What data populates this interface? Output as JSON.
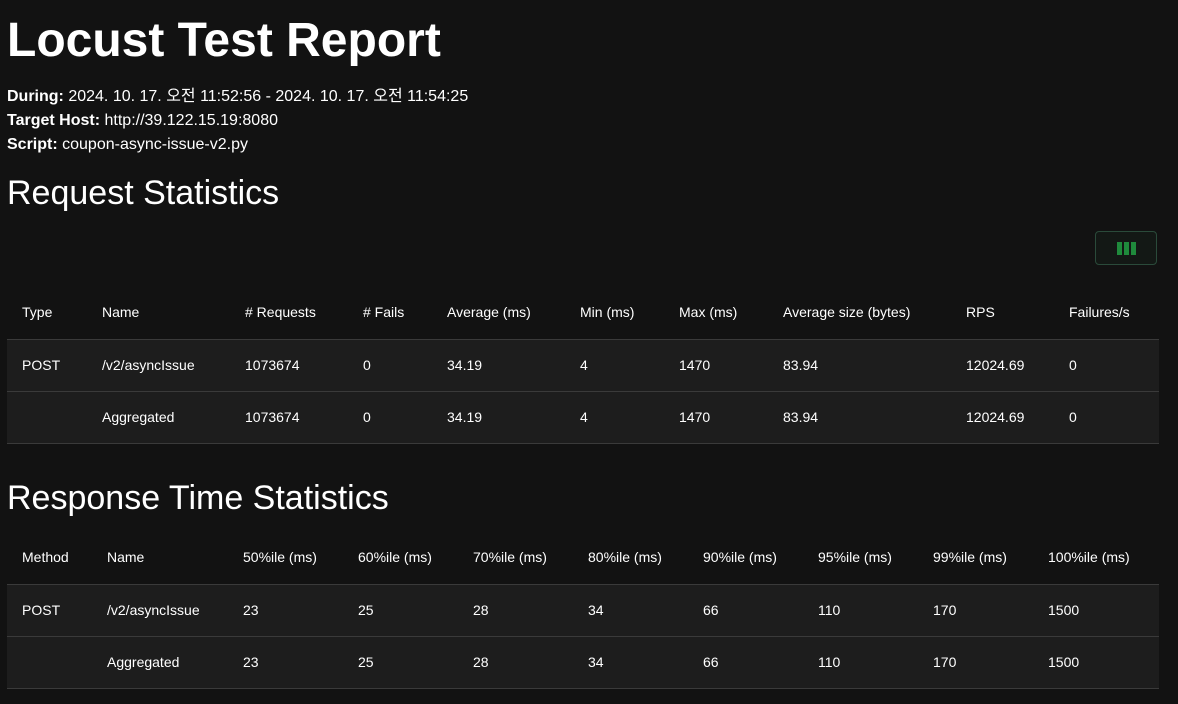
{
  "title": "Locust Test Report",
  "meta": {
    "during_label": "During:",
    "during_value": "2024. 10. 17. 오전 11:52:56 - 2024. 10. 17. 오전 11:54:25",
    "host_label": "Target Host:",
    "host_value": "http://39.122.15.19:8080",
    "script_label": "Script:",
    "script_value": "coupon-async-issue-v2.py"
  },
  "request_stats": {
    "heading": "Request Statistics",
    "columns_button_icon": "view-columns-icon",
    "headers": [
      "Type",
      "Name",
      "# Requests",
      "# Fails",
      "Average (ms)",
      "Min (ms)",
      "Max (ms)",
      "Average size (bytes)",
      "RPS",
      "Failures/s"
    ],
    "rows": [
      [
        "POST",
        "/v2/asyncIssue",
        "1073674",
        "0",
        "34.19",
        "4",
        "1470",
        "83.94",
        "12024.69",
        "0"
      ],
      [
        "",
        "Aggregated",
        "1073674",
        "0",
        "34.19",
        "4",
        "1470",
        "83.94",
        "12024.69",
        "0"
      ]
    ]
  },
  "response_stats": {
    "heading": "Response Time Statistics",
    "headers": [
      "Method",
      "Name",
      "50%ile (ms)",
      "60%ile (ms)",
      "70%ile (ms)",
      "80%ile (ms)",
      "90%ile (ms)",
      "95%ile (ms)",
      "99%ile (ms)",
      "100%ile (ms)"
    ],
    "rows": [
      [
        "POST",
        "/v2/asyncIssue",
        "23",
        "25",
        "28",
        "34",
        "66",
        "110",
        "170",
        "1500"
      ],
      [
        "",
        "Aggregated",
        "23",
        "25",
        "28",
        "34",
        "66",
        "110",
        "170",
        "1500"
      ]
    ]
  },
  "colors": {
    "background": "#121212",
    "row_background": "#1d1d1d",
    "accent_green": "#1f8a3c"
  }
}
